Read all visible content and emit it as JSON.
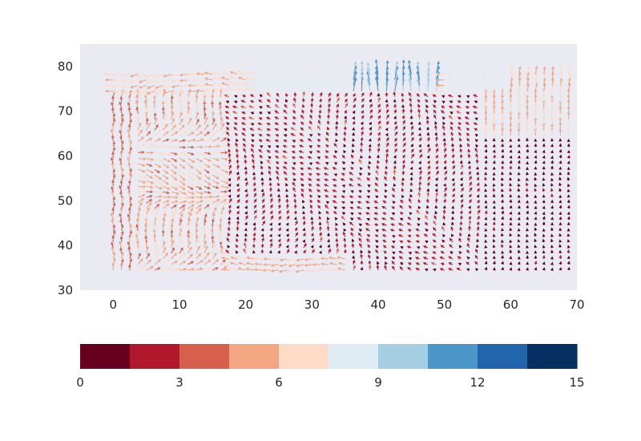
{
  "chart_data": {
    "type": "quiver",
    "title": "",
    "xlabel": "",
    "ylabel": "",
    "xlim": [
      -5,
      70
    ],
    "ylim": [
      30,
      85
    ],
    "xticks": [
      0,
      10,
      20,
      30,
      40,
      50,
      60,
      70
    ],
    "yticks": [
      30,
      40,
      50,
      60,
      70,
      80
    ],
    "grid": false,
    "plot_background": "#eaeaf2",
    "x": [
      0,
      68.75
    ],
    "y": [
      34.5,
      79
    ],
    "grid_spacing": 1.25,
    "magnitude_range": [
      0,
      15
    ],
    "colormap": "RdBu",
    "colorbar": {
      "orientation": "horizontal",
      "placement": "bottom",
      "range": [
        0,
        15
      ],
      "ticks": [
        "0",
        "3",
        "6",
        "9",
        "12",
        "15"
      ],
      "levels": [
        "#67001f",
        "#b2182b",
        "#d6604d",
        "#f4a582",
        "#fddbc7",
        "#e0ecf4",
        "#a6cee3",
        "#4b98c8",
        "#2166ac",
        "#053061"
      ]
    },
    "field_regions": [
      {
        "name": "top-band",
        "x": [
          0,
          68.75
        ],
        "y": [
          74,
          79
        ],
        "magnitude": [
          4.5,
          8.5
        ]
      },
      {
        "name": "top-blue-jet",
        "x": [
          34,
          51
        ],
        "y": [
          71,
          84
        ],
        "magnitude": [
          9,
          12
        ]
      },
      {
        "name": "left-margin",
        "x": [
          0,
          20
        ],
        "y": [
          34.5,
          79
        ],
        "magnitude": [
          4,
          6.5
        ]
      },
      {
        "name": "bottom-band",
        "x": [
          5,
          35
        ],
        "y": [
          34.5,
          38
        ],
        "magnitude": [
          4.5,
          6.5
        ]
      },
      {
        "name": "interior",
        "x": [
          10,
          68.75
        ],
        "y": [
          34.5,
          70
        ],
        "magnitude": [
          0.5,
          3
        ]
      },
      {
        "name": "right-calm",
        "x": [
          56,
          68.75
        ],
        "y": [
          34.5,
          65
        ],
        "magnitude": [
          0,
          1.5
        ]
      }
    ]
  }
}
